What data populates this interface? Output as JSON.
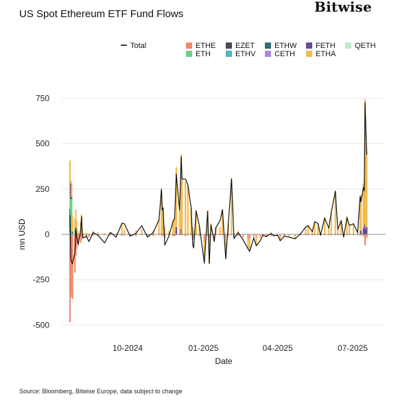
{
  "header": {
    "title": "US Spot Ethereum ETF Fund Flows",
    "brand": "Bitwise"
  },
  "footer": {
    "source": "Source: Bloomberg, Bitwise Europe, data subject to change"
  },
  "colors": {
    "total_line": "#111111",
    "zero_line": "#888888"
  },
  "chart_data": {
    "type": "bar",
    "title": "US Spot Ethereum ETF Fund Flows",
    "xlabel": "Date",
    "ylabel": "mn USD",
    "ylim": [
      -520,
      780
    ],
    "yticks": [
      -500,
      -250,
      0,
      250,
      500,
      750
    ],
    "xlim": [
      "2024-07-23",
      "2025-07-31"
    ],
    "xticks": [
      {
        "date": "2024-10-01",
        "label": "10-2024"
      },
      {
        "date": "2025-01-01",
        "label": "01-2025"
      },
      {
        "date": "2025-04-01",
        "label": "04-2025"
      },
      {
        "date": "2025-07-01",
        "label": "07-2025"
      }
    ],
    "legend_position": "top",
    "stacked": true,
    "series": [
      {
        "name": "Total",
        "color": "#111111",
        "kind": "line"
      },
      {
        "name": "ETHE",
        "color": "#f08a6c",
        "kind": "bar"
      },
      {
        "name": "ETH",
        "color": "#6cd08a",
        "kind": "bar"
      },
      {
        "name": "EZET",
        "color": "#4a4a55",
        "kind": "bar"
      },
      {
        "name": "ETHV",
        "color": "#4fb6c4",
        "kind": "bar"
      },
      {
        "name": "ETHW",
        "color": "#2e6e7a",
        "kind": "bar"
      },
      {
        "name": "CETH",
        "color": "#a98ad8",
        "kind": "bar"
      },
      {
        "name": "FETH",
        "color": "#6a4a8e",
        "kind": "bar"
      },
      {
        "name": "ETHA",
        "color": "#f2bb4e",
        "kind": "bar"
      },
      {
        "name": "QETH",
        "color": "#bfeccc",
        "kind": "bar"
      }
    ],
    "points": [
      {
        "date": "2024-07-23",
        "ETHE": -484,
        "ETH": 15,
        "ETHA": 266,
        "FETH": 71,
        "ETHW": 30,
        "EZET": 10,
        "CETH": 5,
        "ETHV": 10,
        "QETH": 0,
        "Total": 107
      },
      {
        "date": "2024-07-24",
        "ETHE": -327,
        "ETH": 196,
        "ETHA": 17,
        "FETH": 75,
        "ETHW": 10,
        "Total": -133
      },
      {
        "date": "2024-07-25",
        "ETHE": -346,
        "ETH": 195,
        "ETHA": 70,
        "FETH": 10,
        "Total": -152
      },
      {
        "date": "2024-07-26",
        "ETHE": -356,
        "ETH": 5,
        "ETHA": 89,
        "FETH": 10,
        "Total": -163
      },
      {
        "date": "2024-07-29",
        "ETHE": -211,
        "ETH": 28,
        "ETHA": 58,
        "Total": -98
      },
      {
        "date": "2024-07-30",
        "ETHE": -120,
        "ETH": 20,
        "ETHA": 118,
        "Total": 34
      },
      {
        "date": "2024-07-31",
        "ETHE": -79,
        "ETHA": 60,
        "FETH": 15,
        "Total": -10
      },
      {
        "date": "2024-08-01",
        "ETHE": -50,
        "ETHA": 25,
        "Total": -35
      },
      {
        "date": "2024-08-02",
        "ETHE": -62,
        "ETHA": 10,
        "Total": -54
      },
      {
        "date": "2024-08-05",
        "ETHE": -46,
        "ETHA": 47,
        "FETH": 20,
        "Total": 24
      },
      {
        "date": "2024-08-06",
        "ETHE": -30,
        "ETHA": 110,
        "Total": 98
      },
      {
        "date": "2024-08-07",
        "ETHE": -20,
        "ETHA": 35,
        "Total": -5
      },
      {
        "date": "2024-08-08",
        "ETHE": -10,
        "ETHA": 8,
        "Total": -20
      },
      {
        "date": "2024-08-12",
        "ETHE": -20,
        "ETHA": 10,
        "Total": -10
      },
      {
        "date": "2024-08-15",
        "ETHE": -15,
        "ETHA": 5,
        "Total": -40
      },
      {
        "date": "2024-08-20",
        "ETHE": -10,
        "ETHA": 18,
        "Total": 10
      },
      {
        "date": "2024-08-26",
        "ETHE": -8,
        "ETHA": 12,
        "Total": -5
      },
      {
        "date": "2024-09-03",
        "ETHE": -5,
        "ETHA": 5,
        "Total": -47
      },
      {
        "date": "2024-09-10",
        "ETHE": -5,
        "ETHA": 10,
        "Total": 11
      },
      {
        "date": "2024-09-17",
        "ETHE": -5,
        "ETHA": 5,
        "Total": -15
      },
      {
        "date": "2024-09-24",
        "ETHE": -8,
        "ETHA": 60,
        "Total": 62
      },
      {
        "date": "2024-09-27",
        "ETHE": -5,
        "ETHA": 30,
        "Total": 58
      },
      {
        "date": "2024-10-04",
        "ETHE": -10,
        "ETHA": 5,
        "Total": -10
      },
      {
        "date": "2024-10-11",
        "ETHE": -10,
        "ETHA": 20,
        "Total": 5
      },
      {
        "date": "2024-10-18",
        "ETHE": -5,
        "ETHA": 30,
        "Total": 48
      },
      {
        "date": "2024-10-25",
        "ETHE": -10,
        "ETHA": 5,
        "Total": -15
      },
      {
        "date": "2024-11-01",
        "ETHE": -10,
        "ETHA": 20,
        "Total": 10
      },
      {
        "date": "2024-11-08",
        "ETHE": -5,
        "ETHA": 80,
        "Total": 80
      },
      {
        "date": "2024-11-11",
        "ETHE": -5,
        "ETHA": 240,
        "Total": 250
      },
      {
        "date": "2024-11-12",
        "ETHE": -10,
        "ETHA": 120,
        "Total": 135
      },
      {
        "date": "2024-11-13",
        "ETHE": -5,
        "ETHA": 140,
        "Total": 146
      },
      {
        "date": "2024-11-15",
        "ETHE": -20,
        "ETHA": 40,
        "Total": -59
      },
      {
        "date": "2024-11-20",
        "ETHE": -5,
        "ETHA": 20,
        "Total": -10
      },
      {
        "date": "2024-11-25",
        "ETHE": -10,
        "ETHA": 75,
        "Total": 70
      },
      {
        "date": "2024-11-27",
        "ETHE": -10,
        "ETHA": 95,
        "Total": 90
      },
      {
        "date": "2024-11-29",
        "ETHE": -5,
        "ETHA": 330,
        "FETH": 40,
        "Total": 332
      },
      {
        "date": "2024-12-03",
        "ETHE": -5,
        "ETHA": 130,
        "Total": 132
      },
      {
        "date": "2024-12-05",
        "ETHE": -5,
        "ETHA": 410,
        "FETH": 30,
        "Total": 428
      },
      {
        "date": "2024-12-06",
        "ETHE": -5,
        "ETHA": 310,
        "Total": 305
      },
      {
        "date": "2024-12-10",
        "ETHE": -10,
        "ETHA": 290,
        "Total": 305
      },
      {
        "date": "2024-12-13",
        "ETHE": -5,
        "ETHA": 270,
        "Total": 273
      },
      {
        "date": "2024-12-17",
        "ETHE": -5,
        "ETHA": 145,
        "Total": 145
      },
      {
        "date": "2024-12-19",
        "ETHE": -30,
        "ETHA": 40,
        "Total": -61
      },
      {
        "date": "2024-12-20",
        "ETHE": -20,
        "ETHA": 20,
        "Total": -75
      },
      {
        "date": "2024-12-23",
        "ETHE": -5,
        "ETHA": 130,
        "Total": 130
      },
      {
        "date": "2024-12-27",
        "ETHE": -10,
        "ETHA": 45,
        "Total": 47
      },
      {
        "date": "2025-01-02",
        "ETHE": -40,
        "ETHA": -90,
        "Total": -159
      },
      {
        "date": "2025-01-06",
        "ETHE": -10,
        "ETHA": 130,
        "Total": 128
      },
      {
        "date": "2025-01-08",
        "ETHE": -20,
        "ETHA": -140,
        "Total": -160
      },
      {
        "date": "2025-01-10",
        "ETHE": -5,
        "ETHA": 60,
        "Total": 52
      },
      {
        "date": "2025-01-14",
        "ETHE": -30,
        "ETHA": -10,
        "Total": -39
      },
      {
        "date": "2025-01-16",
        "ETHE": -5,
        "ETHA": 40,
        "Total": 37
      },
      {
        "date": "2025-01-21",
        "ETHE": -5,
        "ETHA": 40,
        "Total": 75
      },
      {
        "date": "2025-01-24",
        "ETHE": -5,
        "ETHA": 130,
        "Total": 137
      },
      {
        "date": "2025-01-28",
        "ETHE": -20,
        "ETHA": -90,
        "Total": -136
      },
      {
        "date": "2025-01-31",
        "ETHE": -10,
        "ETHA": 60,
        "Total": 50
      },
      {
        "date": "2025-02-04",
        "ETHE": -5,
        "ETHA": 300,
        "Total": 307
      },
      {
        "date": "2025-02-07",
        "ETHE": -10,
        "ETHA": -5,
        "Total": -23
      },
      {
        "date": "2025-02-12",
        "ETHE": -10,
        "ETHA": 20,
        "Total": 10
      },
      {
        "date": "2025-02-18",
        "ETHE": -10,
        "ETHA": -10,
        "Total": -30
      },
      {
        "date": "2025-02-24",
        "ETHE": -30,
        "ETHA": -50,
        "Total": -79
      },
      {
        "date": "2025-02-26",
        "ETHE": -20,
        "ETHA": -70,
        "Total": -94
      },
      {
        "date": "2025-03-03",
        "ETHE": -10,
        "ETHA": -10,
        "Total": -20
      },
      {
        "date": "2025-03-06",
        "ETHE": -20,
        "ETHA": -40,
        "Total": -63
      },
      {
        "date": "2025-03-11",
        "ETHE": -10,
        "ETHA": -10,
        "Total": -34
      },
      {
        "date": "2025-03-14",
        "ETHE": -10,
        "ETHA": 5,
        "Total": -5
      },
      {
        "date": "2025-03-18",
        "ETHE": -10,
        "ETHA": -5,
        "Total": -12
      },
      {
        "date": "2025-03-24",
        "ETHE": -10,
        "ETHA": 10,
        "Total": 5
      },
      {
        "date": "2025-03-27",
        "ETHE": -5,
        "ETHA": -5,
        "Total": -8
      },
      {
        "date": "2025-04-01",
        "ETHE": -5,
        "ETHA": -5,
        "Total": -5
      },
      {
        "date": "2025-04-04",
        "ETHE": -10,
        "ETHA": -20,
        "Total": -35
      },
      {
        "date": "2025-04-09",
        "ETHE": -10,
        "ETHA": 5,
        "Total": -10
      },
      {
        "date": "2025-04-15",
        "ETHE": -5,
        "ETHA": -5,
        "Total": -15
      },
      {
        "date": "2025-04-22",
        "ETHE": -5,
        "ETHA": -20,
        "Total": -25
      },
      {
        "date": "2025-04-29",
        "ETHE": -5,
        "ETHA": 5,
        "Total": 5
      },
      {
        "date": "2025-05-05",
        "ETHE": -5,
        "ETHA": 40,
        "Total": 40
      },
      {
        "date": "2025-05-08",
        "ETHE": -5,
        "ETHA": 50,
        "Total": 48
      },
      {
        "date": "2025-05-13",
        "ETHE": -5,
        "ETHA": 20,
        "Total": 15
      },
      {
        "date": "2025-05-16",
        "ETHE": -5,
        "ETHA": 70,
        "Total": 70
      },
      {
        "date": "2025-05-20",
        "ETHE": -5,
        "ETHA": 60,
        "Total": 60
      },
      {
        "date": "2025-05-23",
        "ETHE": -5,
        "ETHA": 5,
        "Total": -5
      },
      {
        "date": "2025-05-28",
        "ETHE": -5,
        "ETHA": 95,
        "Total": 90
      },
      {
        "date": "2025-06-02",
        "ETHE": -5,
        "ETHA": 40,
        "Total": 35
      },
      {
        "date": "2025-06-05",
        "ETHE": -5,
        "ETHA": 120,
        "Total": 120
      },
      {
        "date": "2025-06-10",
        "ETHE": -5,
        "ETHA": 240,
        "Total": 238
      },
      {
        "date": "2025-06-13",
        "ETHE": -5,
        "ETHA": 30,
        "Total": 28
      },
      {
        "date": "2025-06-17",
        "ETHE": -5,
        "ETHA": 80,
        "Total": 75
      },
      {
        "date": "2025-06-20",
        "ETHE": -5,
        "ETHA": -10,
        "Total": -15
      },
      {
        "date": "2025-06-24",
        "ETHE": -5,
        "ETHA": 100,
        "Total": 92
      },
      {
        "date": "2025-06-27",
        "ETHE": -5,
        "ETHA": 55,
        "Total": 50
      },
      {
        "date": "2025-07-02",
        "ETHE": -5,
        "ETHA": 60,
        "Total": 58
      },
      {
        "date": "2025-07-07",
        "ETHE": -5,
        "ETHA": 10,
        "Total": 10
      },
      {
        "date": "2025-07-10",
        "ETHE": -5,
        "ETHA": 200,
        "Total": 210
      },
      {
        "date": "2025-07-11",
        "ETHE": -5,
        "ETHA": 195,
        "FETH": 20,
        "Total": 180
      },
      {
        "date": "2025-07-14",
        "ETHE": -10,
        "ETHA": 250,
        "FETH": 30,
        "Total": 258
      },
      {
        "date": "2025-07-15",
        "ETHE": -5,
        "ETHA": 220,
        "FETH": 40,
        "Total": 240
      },
      {
        "date": "2025-07-16",
        "ETHE": -60,
        "ETHA": 690,
        "FETH": 45,
        "ETHW": 10,
        "Total": 726
      },
      {
        "date": "2025-07-17",
        "ETHE": -10,
        "ETHA": 520,
        "FETH": 30,
        "Total": 580
      },
      {
        "date": "2025-07-18",
        "ETHE": -20,
        "ETHA": 420,
        "FETH": 40,
        "Total": 440
      }
    ]
  }
}
